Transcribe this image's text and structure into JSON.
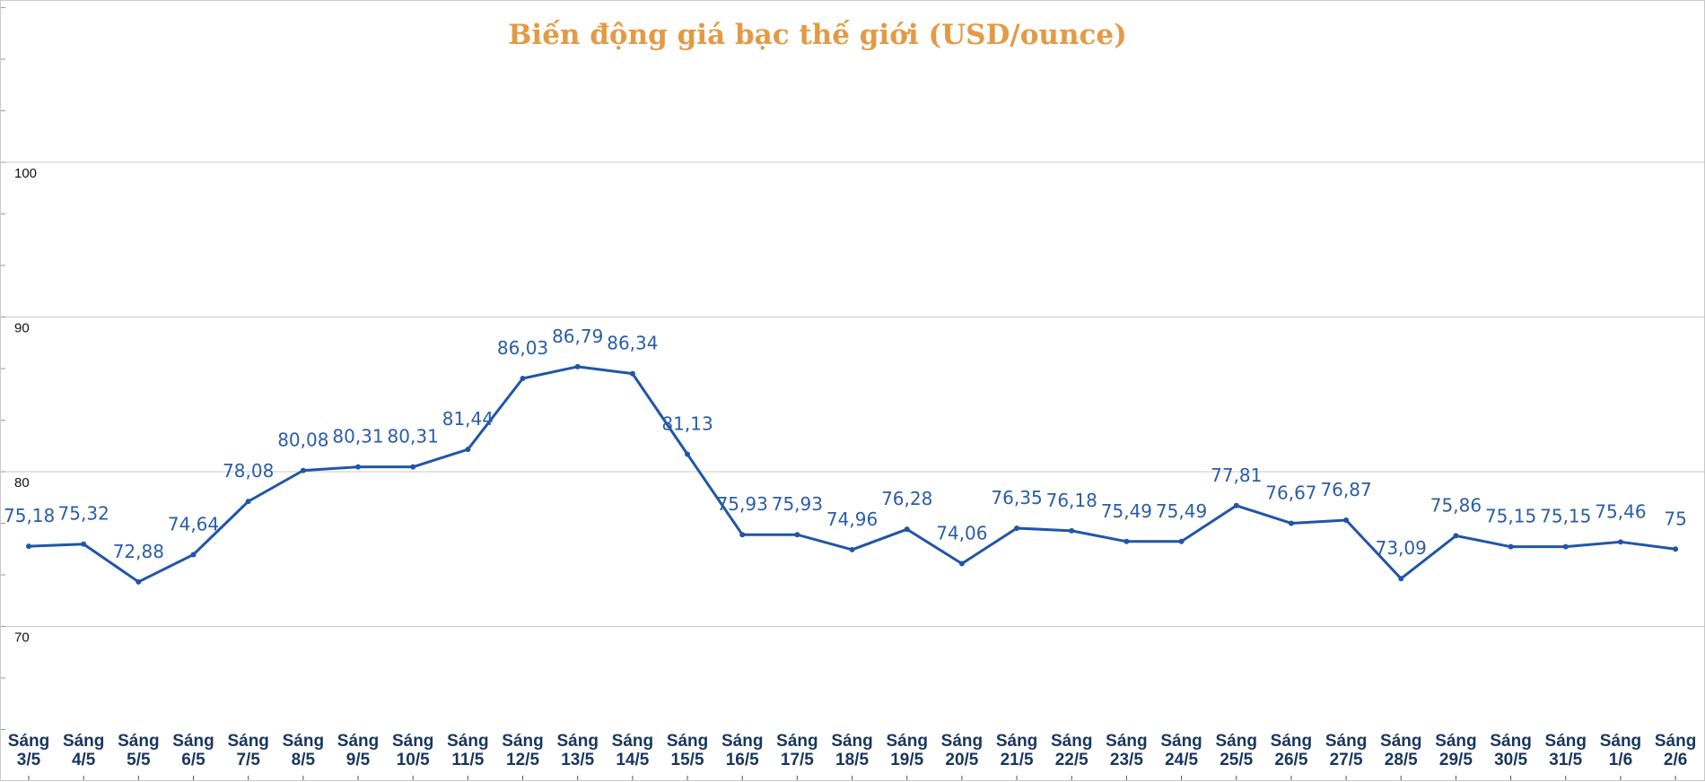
{
  "chart_data": {
    "type": "line",
    "title": "Biến động giá bạc thế giới (USD/ounce)",
    "xlabel": "",
    "ylabel": "",
    "ylim": [
      60,
      110
    ],
    "yticks": [
      70,
      80,
      90,
      100
    ],
    "grid": true,
    "colors": {
      "title": "#e39a45",
      "line": "#2155a8",
      "labels": "#2b5da6",
      "xticks": "#18365f",
      "grid": "#c8c8c8"
    },
    "categories": [
      [
        "Sáng",
        "3/5"
      ],
      [
        "Sáng",
        "4/5"
      ],
      [
        "Sáng",
        "5/5"
      ],
      [
        "Sáng",
        "6/5"
      ],
      [
        "Sáng",
        "7/5"
      ],
      [
        "Sáng",
        "8/5"
      ],
      [
        "Sáng",
        "9/5"
      ],
      [
        "Sáng",
        "10/5"
      ],
      [
        "Sáng",
        "11/5"
      ],
      [
        "Sáng",
        "12/5"
      ],
      [
        "Sáng",
        "13/5"
      ],
      [
        "Sáng",
        "14/5"
      ],
      [
        "Sáng",
        "15/5"
      ],
      [
        "Sáng",
        "16/5"
      ],
      [
        "Sáng",
        "17/5"
      ],
      [
        "Sáng",
        "18/5"
      ],
      [
        "Sáng",
        "19/5"
      ],
      [
        "Sáng",
        "20/5"
      ],
      [
        "Sáng",
        "21/5"
      ],
      [
        "Sáng",
        "22/5"
      ],
      [
        "Sáng",
        "23/5"
      ],
      [
        "Sáng",
        "24/5"
      ],
      [
        "Sáng",
        "25/5"
      ],
      [
        "Sáng",
        "26/5"
      ],
      [
        "Sáng",
        "27/5"
      ],
      [
        "Sáng",
        "28/5"
      ],
      [
        "Sáng",
        "29/5"
      ],
      [
        "Sáng",
        "30/5"
      ],
      [
        "Sáng",
        "31/5"
      ],
      [
        "Sáng",
        "1/6"
      ],
      [
        "Sáng",
        "2/6"
      ]
    ],
    "values": [
      75.18,
      75.32,
      72.88,
      74.64,
      78.08,
      80.08,
      80.31,
      80.31,
      81.44,
      86.03,
      86.79,
      86.34,
      81.13,
      75.93,
      75.93,
      74.96,
      76.28,
      74.06,
      76.35,
      76.18,
      75.49,
      75.49,
      77.81,
      76.67,
      76.87,
      73.09,
      75.86,
      75.15,
      75.15,
      75.46,
      75
    ],
    "data_labels": [
      "75,18",
      "75,32",
      "72,88",
      "74,64",
      "78,08",
      "80,08",
      "80,31",
      "80,31",
      "81,44",
      "86,03",
      "86,79",
      "86,34",
      "81,13",
      "75,93",
      "75,93",
      "74,96",
      "76,28",
      "74,06",
      "76,35",
      "76,18",
      "75,49",
      "75,49",
      "77,81",
      "76,67",
      "76,87",
      "73,09",
      "75,86",
      "75,15",
      "75,15",
      "75,46",
      "75"
    ]
  }
}
